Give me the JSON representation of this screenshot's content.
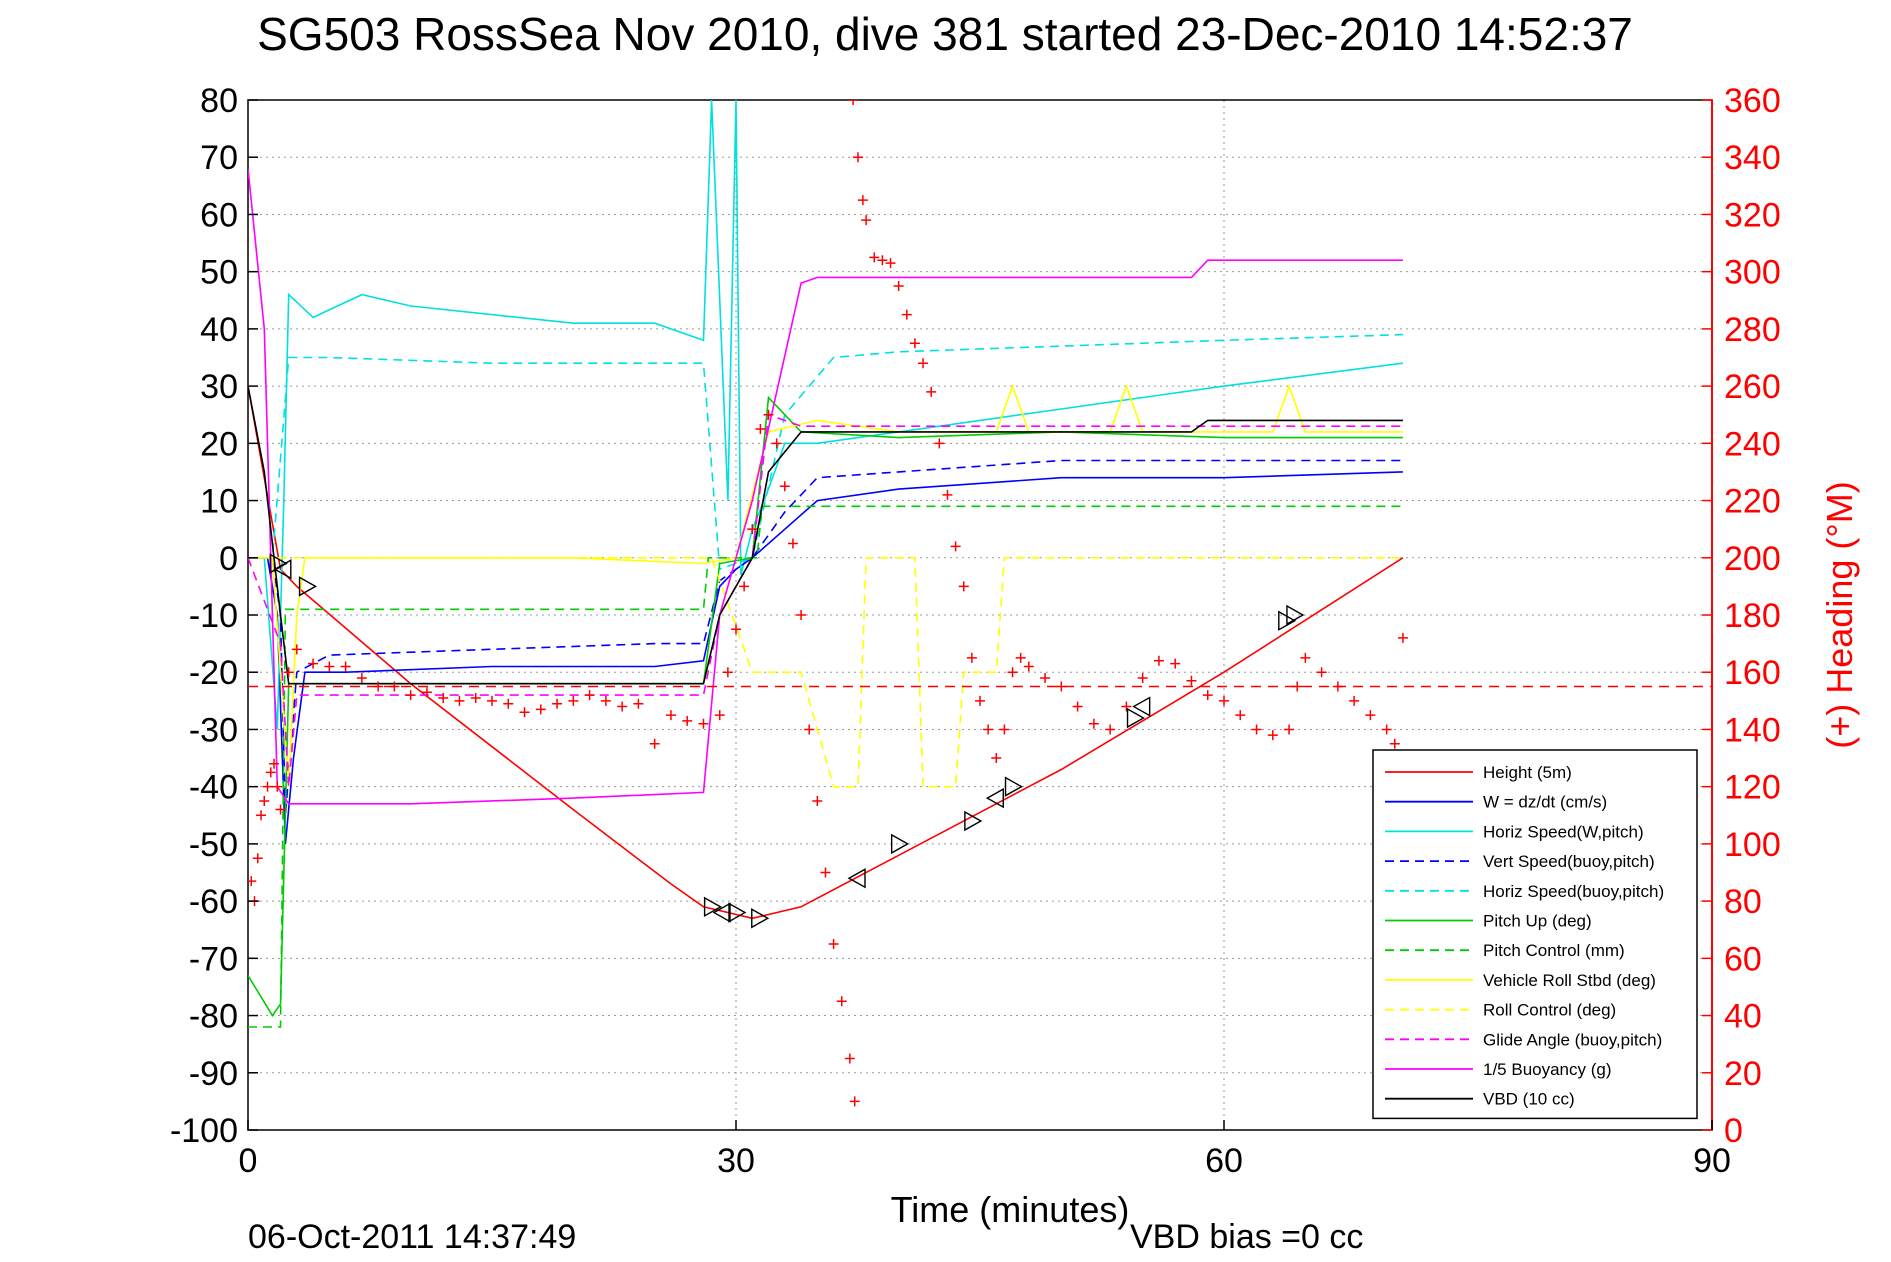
{
  "chart_data": {
    "type": "line",
    "title": "SG503 RossSea Nov 2010, dive 381 started 23-Dec-2010 14:52:37",
    "xlabel": "Time (minutes)",
    "ylabel": "",
    "ylabel_right": "(+) Heading (°M)",
    "xlim": [
      0,
      90
    ],
    "ylim": [
      -100,
      80
    ],
    "ylim_right": [
      0,
      360
    ],
    "x_ticks": [
      "0",
      "30",
      "60",
      "90"
    ],
    "y_ticks": [
      "80",
      "70",
      "60",
      "50",
      "40",
      "30",
      "20",
      "10",
      "0",
      "-10",
      "-20",
      "-30",
      "-40",
      "-50",
      "-60",
      "-70",
      "-80",
      "-90",
      "-100"
    ],
    "y_ticks_right": [
      "360",
      "340",
      "320",
      "300",
      "280",
      "260",
      "240",
      "220",
      "200",
      "180",
      "160",
      "140",
      "120",
      "100",
      "80",
      "60",
      "40",
      "20",
      "0"
    ],
    "grid": true,
    "legend_position": "bottom-right",
    "footer_left": "06-Oct-2011 14:37:49",
    "footer_center": "VBD bias =0 cc",
    "series": [
      {
        "name": "Height (5m)",
        "color": "#ff0000",
        "style": "solid",
        "points": [
          [
            0,
            30
          ],
          [
            2,
            -2
          ],
          [
            3,
            -5
          ],
          [
            10,
            -22
          ],
          [
            20,
            -44
          ],
          [
            26,
            -57
          ],
          [
            28,
            -61
          ],
          [
            31,
            -63
          ],
          [
            34,
            -61
          ],
          [
            40,
            -52
          ],
          [
            50,
            -37
          ],
          [
            60,
            -20
          ],
          [
            71,
            0
          ]
        ]
      },
      {
        "name": "W = dz/dt (cm/s)",
        "color": "#0000ff",
        "style": "solid",
        "points": [
          [
            0,
            0
          ],
          [
            1.2,
            0
          ],
          [
            1.8,
            -10
          ],
          [
            2.3,
            -50
          ],
          [
            2.8,
            -35
          ],
          [
            3.5,
            -20
          ],
          [
            6,
            -20
          ],
          [
            15,
            -19
          ],
          [
            25,
            -19
          ],
          [
            28,
            -18
          ],
          [
            29,
            -5
          ],
          [
            30,
            -2
          ],
          [
            31,
            0
          ],
          [
            33,
            5
          ],
          [
            35,
            10
          ],
          [
            40,
            12
          ],
          [
            50,
            14
          ],
          [
            60,
            14
          ],
          [
            71,
            15
          ]
        ]
      },
      {
        "name": "Horiz Speed(W,pitch)",
        "color": "#00e0e0",
        "style": "solid",
        "points": [
          [
            0,
            0
          ],
          [
            1,
            0
          ],
          [
            1.8,
            -30
          ],
          [
            2.2,
            10
          ],
          [
            2.5,
            46
          ],
          [
            4,
            42
          ],
          [
            7,
            46
          ],
          [
            10,
            44
          ],
          [
            20,
            41
          ],
          [
            25,
            41
          ],
          [
            28,
            38
          ],
          [
            28.5,
            80
          ],
          [
            29.5,
            10
          ],
          [
            30,
            80
          ],
          [
            30.3,
            -3
          ],
          [
            31,
            5
          ],
          [
            32,
            12
          ],
          [
            33,
            20
          ],
          [
            35,
            20
          ],
          [
            40,
            22
          ],
          [
            45,
            24
          ],
          [
            50,
            26
          ],
          [
            60,
            30
          ],
          [
            71,
            34
          ]
        ]
      },
      {
        "name": "Vert Speed(buoy,pitch)",
        "color": "#0000ff",
        "style": "dashed",
        "points": [
          [
            0,
            0
          ],
          [
            1.5,
            0
          ],
          [
            2,
            -10
          ],
          [
            2.3,
            -45
          ],
          [
            3,
            -20
          ],
          [
            5,
            -17
          ],
          [
            15,
            -16
          ],
          [
            25,
            -15
          ],
          [
            28,
            -15
          ],
          [
            29,
            -4
          ],
          [
            31,
            0
          ],
          [
            33,
            8
          ],
          [
            35,
            14
          ],
          [
            40,
            15
          ],
          [
            50,
            17
          ],
          [
            60,
            17
          ],
          [
            71,
            17
          ]
        ]
      },
      {
        "name": "Horiz Speed(buoy,pitch)",
        "color": "#00e0e0",
        "style": "dashed",
        "points": [
          [
            0,
            0
          ],
          [
            1.5,
            0
          ],
          [
            2.5,
            35
          ],
          [
            5,
            35
          ],
          [
            15,
            34
          ],
          [
            25,
            34
          ],
          [
            28,
            34
          ],
          [
            29,
            -2
          ],
          [
            31,
            0
          ],
          [
            33,
            25
          ],
          [
            36,
            35
          ],
          [
            40,
            36
          ],
          [
            50,
            37
          ],
          [
            60,
            38
          ],
          [
            71,
            39
          ]
        ]
      },
      {
        "name": "Pitch Up (deg)",
        "color": "#00cc00",
        "style": "solid",
        "points": [
          [
            0,
            -73
          ],
          [
            1.5,
            -80
          ],
          [
            2,
            -78
          ],
          [
            2.5,
            -22
          ],
          [
            4,
            -22
          ],
          [
            10,
            -22
          ],
          [
            20,
            -22
          ],
          [
            28,
            -22
          ],
          [
            29,
            -1
          ],
          [
            31,
            0
          ],
          [
            32,
            28
          ],
          [
            34,
            22
          ],
          [
            40,
            21
          ],
          [
            50,
            22
          ],
          [
            60,
            21
          ],
          [
            71,
            21
          ]
        ]
      },
      {
        "name": "Pitch Control (mm)",
        "color": "#00cc00",
        "style": "dashed",
        "points": [
          [
            0,
            -82
          ],
          [
            2,
            -82
          ],
          [
            2.3,
            -9
          ],
          [
            28,
            -9
          ],
          [
            28.3,
            0
          ],
          [
            31.3,
            0
          ],
          [
            31.6,
            9
          ],
          [
            71,
            9
          ]
        ]
      },
      {
        "name": "Vehicle Roll Stbd (deg)",
        "color": "#ffff00",
        "style": "solid",
        "points": [
          [
            0,
            0
          ],
          [
            1.5,
            0
          ],
          [
            2.5,
            -40
          ],
          [
            3,
            -10
          ],
          [
            3.5,
            0
          ],
          [
            20,
            0
          ],
          [
            28,
            -1
          ],
          [
            30,
            0
          ],
          [
            32,
            22
          ],
          [
            35,
            24
          ],
          [
            40,
            22
          ],
          [
            46,
            22
          ],
          [
            47,
            30
          ],
          [
            48,
            22
          ],
          [
            53,
            22
          ],
          [
            54,
            30
          ],
          [
            55,
            22
          ],
          [
            63,
            22
          ],
          [
            64,
            30
          ],
          [
            65,
            22
          ],
          [
            71,
            22
          ]
        ]
      },
      {
        "name": "Roll Control (deg)",
        "color": "#ffff00",
        "style": "dashed",
        "points": [
          [
            0,
            0
          ],
          [
            3.5,
            0
          ],
          [
            28.5,
            0
          ],
          [
            31,
            -20
          ],
          [
            34,
            -20
          ],
          [
            36,
            -40
          ],
          [
            37.5,
            -40
          ],
          [
            38,
            0
          ],
          [
            41,
            0
          ],
          [
            41.5,
            -40
          ],
          [
            43.5,
            -40
          ],
          [
            44,
            -20
          ],
          [
            46,
            -20
          ],
          [
            46.5,
            0
          ],
          [
            71,
            0
          ]
        ]
      },
      {
        "name": "Glide Angle (buoy,pitch)",
        "color": "#ff00ff",
        "style": "dashed",
        "points": [
          [
            0,
            0
          ],
          [
            2,
            -15
          ],
          [
            2.5,
            -40
          ],
          [
            3,
            -24
          ],
          [
            10,
            -24
          ],
          [
            20,
            -24
          ],
          [
            28,
            -24
          ],
          [
            29,
            -10
          ],
          [
            31,
            0
          ],
          [
            32,
            25
          ],
          [
            34,
            23
          ],
          [
            50,
            23
          ],
          [
            60,
            23
          ],
          [
            71,
            23
          ]
        ]
      },
      {
        "name": "1/5 Buoyancy (g)",
        "color": "#ff00ff",
        "style": "solid",
        "points": [
          [
            0,
            68
          ],
          [
            1,
            40
          ],
          [
            1.8,
            -40
          ],
          [
            2.5,
            -43
          ],
          [
            10,
            -43
          ],
          [
            20,
            -42
          ],
          [
            28,
            -41
          ],
          [
            29,
            -10
          ],
          [
            31,
            10
          ],
          [
            34,
            48
          ],
          [
            35,
            49
          ],
          [
            50,
            49
          ],
          [
            58,
            49
          ],
          [
            59,
            52
          ],
          [
            71,
            52
          ]
        ]
      },
      {
        "name": "VBD (10 cc)",
        "color": "#000000",
        "style": "solid",
        "points": [
          [
            0,
            30
          ],
          [
            1,
            15
          ],
          [
            2,
            -10
          ],
          [
            2.5,
            -22
          ],
          [
            10,
            -22
          ],
          [
            20,
            -22
          ],
          [
            28,
            -22
          ],
          [
            29,
            -10
          ],
          [
            31,
            0
          ],
          [
            32,
            15
          ],
          [
            34,
            22
          ],
          [
            40,
            22
          ],
          [
            50,
            22
          ],
          [
            58,
            22
          ],
          [
            59,
            24
          ],
          [
            71,
            24
          ]
        ]
      }
    ],
    "heading_marks": {
      "label": "(+) Heading (°M)",
      "color": "#ff0000",
      "points": [
        [
          0.2,
          87
        ],
        [
          0.4,
          80
        ],
        [
          0.6,
          95
        ],
        [
          0.8,
          110
        ],
        [
          1,
          115
        ],
        [
          1.2,
          120
        ],
        [
          1.4,
          125
        ],
        [
          1.6,
          128
        ],
        [
          1.8,
          120
        ],
        [
          2,
          112
        ],
        [
          2.5,
          160
        ],
        [
          3,
          168
        ],
        [
          4,
          163
        ],
        [
          5,
          162
        ],
        [
          6,
          162
        ],
        [
          7,
          158
        ],
        [
          8,
          155
        ],
        [
          9,
          155
        ],
        [
          10,
          152
        ],
        [
          11,
          153
        ],
        [
          12,
          151
        ],
        [
          13,
          150
        ],
        [
          14,
          151
        ],
        [
          15,
          150
        ],
        [
          16,
          149
        ],
        [
          17,
          146
        ],
        [
          18,
          147
        ],
        [
          19,
          149
        ],
        [
          20,
          150
        ],
        [
          21,
          152
        ],
        [
          22,
          150
        ],
        [
          23,
          148
        ],
        [
          24,
          149
        ],
        [
          25,
          135
        ],
        [
          26,
          145
        ],
        [
          27,
          143
        ],
        [
          28,
          142
        ],
        [
          29,
          145
        ],
        [
          29.5,
          160
        ],
        [
          30,
          175
        ],
        [
          30.5,
          190
        ],
        [
          31,
          210
        ],
        [
          31.5,
          245
        ],
        [
          32,
          250
        ],
        [
          32.5,
          240
        ],
        [
          33,
          225
        ],
        [
          33.5,
          205
        ],
        [
          34,
          180
        ],
        [
          34.5,
          140
        ],
        [
          35,
          115
        ],
        [
          35.5,
          90
        ],
        [
          36,
          65
        ],
        [
          36.5,
          45
        ],
        [
          37,
          25
        ],
        [
          37.3,
          10
        ],
        [
          37.2,
          360
        ],
        [
          37.5,
          340
        ],
        [
          37.8,
          325
        ],
        [
          38,
          318
        ],
        [
          38.5,
          305
        ],
        [
          39,
          304
        ],
        [
          39.5,
          303
        ],
        [
          40,
          295
        ],
        [
          40.5,
          285
        ],
        [
          41,
          275
        ],
        [
          41.5,
          268
        ],
        [
          42,
          258
        ],
        [
          42.5,
          240
        ],
        [
          43,
          222
        ],
        [
          43.5,
          204
        ],
        [
          44,
          190
        ],
        [
          44.5,
          165
        ],
        [
          45,
          150
        ],
        [
          45.5,
          140
        ],
        [
          46,
          130
        ],
        [
          46.5,
          140
        ],
        [
          47,
          160
        ],
        [
          47.5,
          165
        ],
        [
          48,
          162
        ],
        [
          49,
          158
        ],
        [
          50,
          155
        ],
        [
          51,
          148
        ],
        [
          52,
          142
        ],
        [
          53,
          140
        ],
        [
          54,
          148
        ],
        [
          55,
          158
        ],
        [
          56,
          164
        ],
        [
          57,
          163
        ],
        [
          58,
          157
        ],
        [
          59,
          152
        ],
        [
          60,
          150
        ],
        [
          61,
          145
        ],
        [
          62,
          140
        ],
        [
          63,
          138
        ],
        [
          64,
          140
        ],
        [
          64.5,
          155
        ],
        [
          65,
          165
        ],
        [
          66,
          160
        ],
        [
          67,
          155
        ],
        [
          68,
          150
        ],
        [
          69,
          145
        ],
        [
          70,
          140
        ],
        [
          70.5,
          135
        ],
        [
          71,
          172
        ]
      ]
    },
    "heading_reference": {
      "value": 155,
      "color": "#ff0000",
      "style": "dashed"
    },
    "markers": [
      [
        1.8,
        -1
      ],
      [
        2.2,
        -2
      ],
      [
        3.6,
        -5
      ],
      [
        28.5,
        -61
      ],
      [
        29.2,
        -62
      ],
      [
        30,
        -62
      ],
      [
        31.4,
        -63
      ],
      [
        37.5,
        -56
      ],
      [
        40,
        -50
      ],
      [
        44.5,
        -46
      ],
      [
        46,
        -42
      ],
      [
        47,
        -40
      ],
      [
        54.5,
        -28
      ],
      [
        55,
        -26
      ],
      [
        63.8,
        -11
      ],
      [
        64.3,
        -10
      ]
    ]
  }
}
